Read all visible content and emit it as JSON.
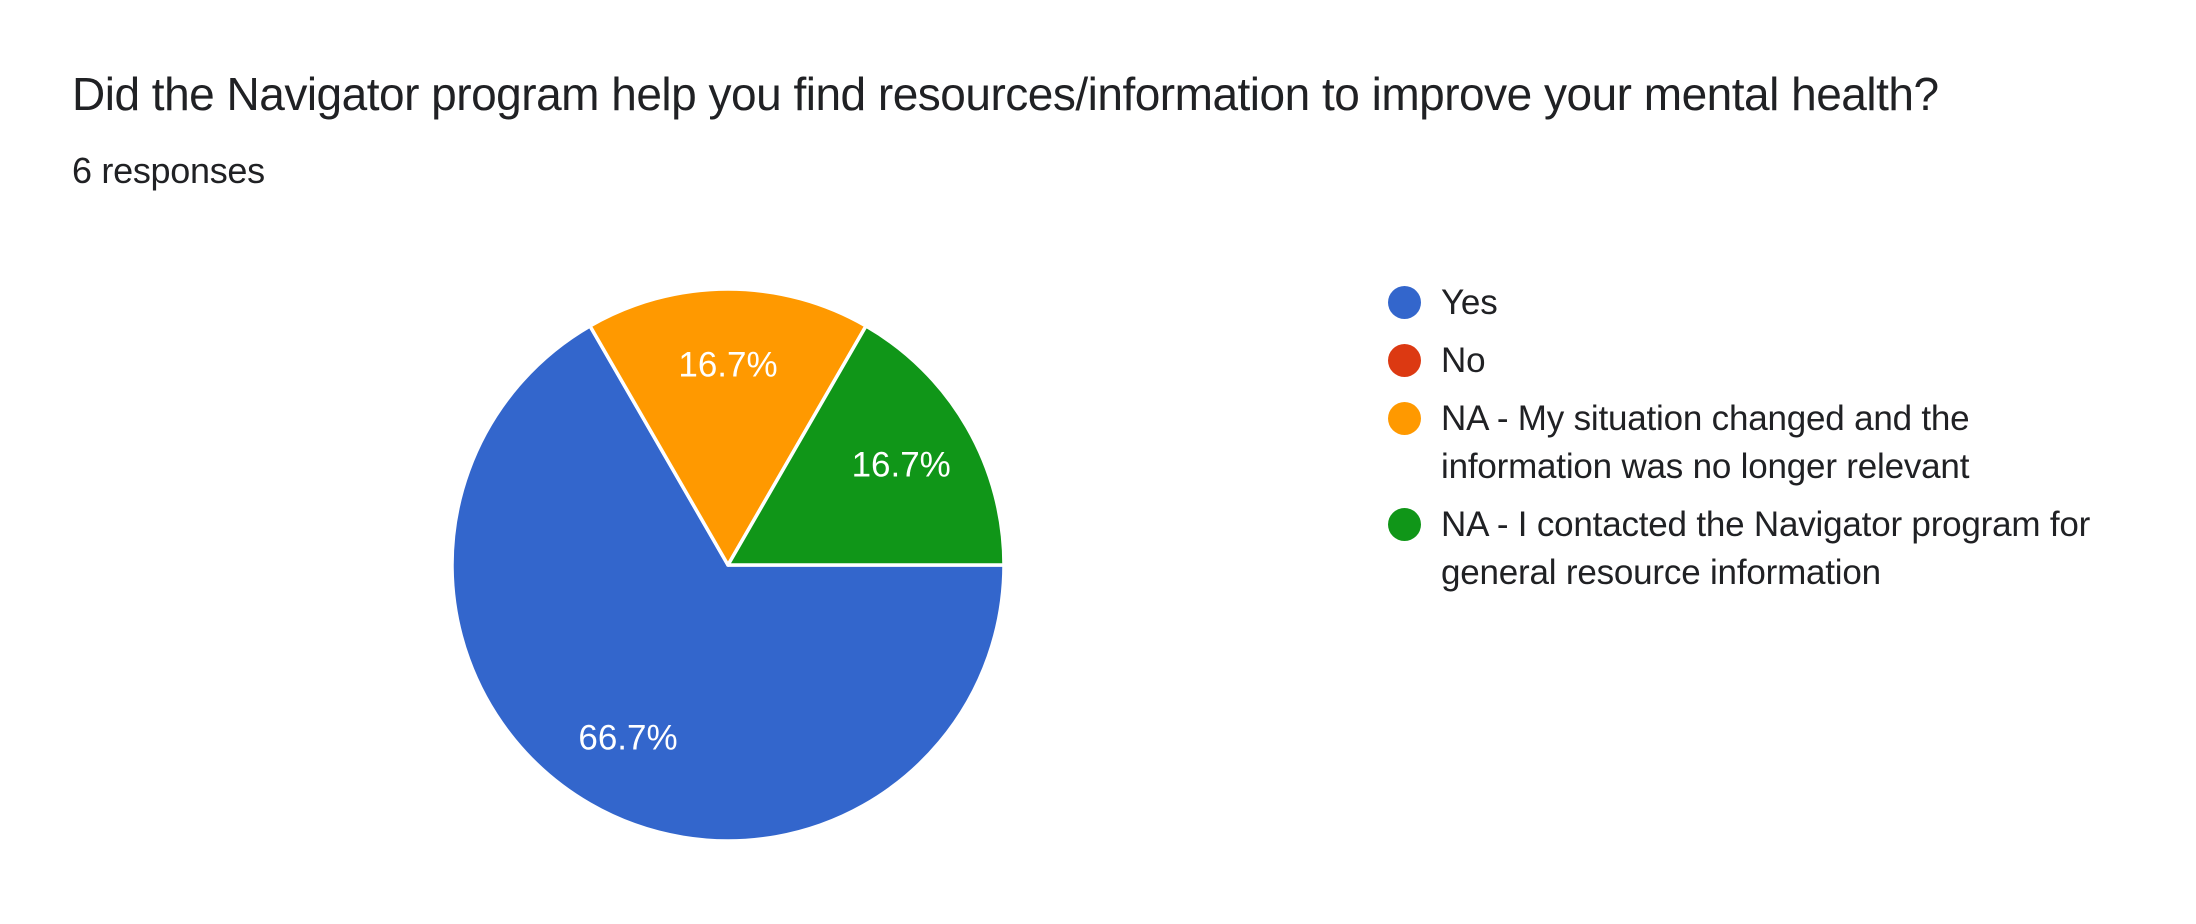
{
  "chart_data": {
    "type": "pie",
    "title": "Did the Navigator program help you find resources/information to improve your mental health?",
    "subtitle": "6 responses",
    "total_responses": 6,
    "legend_position": "right",
    "rotation": "first slice starts at 3 o'clock, clockwise",
    "slice_label_style": "percent inside slice, white text",
    "text_color": "#202124",
    "background_color": "#ffffff",
    "slices": [
      {
        "id": "yes",
        "label": "Yes",
        "count": 4,
        "percent": 66.7,
        "percent_label": "66.7%",
        "color": "#3366CC"
      },
      {
        "id": "no",
        "label": "No",
        "count": 0,
        "percent": 0,
        "percent_label": "",
        "color": "#DC3912"
      },
      {
        "id": "na-situation-changed",
        "label": "NA - My situation changed and the information was no longer relevant",
        "count": 1,
        "percent": 16.7,
        "percent_label": "16.7%",
        "color": "#FF9900"
      },
      {
        "id": "na-general-resource",
        "label": "NA - I contacted the Navigator program for general resource information",
        "count": 1,
        "percent": 16.7,
        "percent_label": "16.7%",
        "color": "#109618"
      }
    ]
  }
}
